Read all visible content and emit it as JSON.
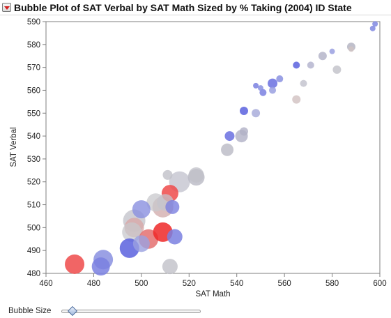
{
  "header": {
    "menu_icon": "red-disclosure-triangle-icon",
    "title": "Bubble Plot of SAT Verbal by SAT Math Sized by % Taking (2004) ID State"
  },
  "slider": {
    "label": "Bubble Size",
    "value_fraction": 0.08
  },
  "colors": {
    "red": "#ee4a4a",
    "blue": "#6a70e0",
    "gray": "#b9b9c4",
    "axis": "#7f7f7f"
  },
  "chart_data": {
    "type": "scatter",
    "xlabel": "SAT Math",
    "ylabel": "SAT Verbal",
    "xlim": [
      460,
      600
    ],
    "ylim": [
      480,
      590
    ],
    "xticks": [
      460,
      480,
      500,
      520,
      540,
      560,
      580,
      600
    ],
    "yticks": [
      480,
      490,
      500,
      510,
      520,
      530,
      540,
      550,
      560,
      570,
      580,
      590
    ],
    "grid": false,
    "points": [
      {
        "x": 598,
        "y": 589,
        "size": 4,
        "color": "#8088e0",
        "opacity": 0.85
      },
      {
        "x": 597,
        "y": 587,
        "size": 4,
        "color": "#8088e0",
        "opacity": 0.85
      },
      {
        "x": 588,
        "y": 579,
        "size": 6,
        "color": "#b0b0bf",
        "opacity": 0.8
      },
      {
        "x": 588,
        "y": 578,
        "size": 4,
        "color": "#d0c3c3",
        "opacity": 0.8
      },
      {
        "x": 582,
        "y": 569,
        "size": 6,
        "color": "#c0c0c8",
        "opacity": 0.8
      },
      {
        "x": 580,
        "y": 577,
        "size": 4,
        "color": "#9aa0e0",
        "opacity": 0.85
      },
      {
        "x": 576,
        "y": 575,
        "size": 6,
        "color": "#b0b0c6",
        "opacity": 0.8
      },
      {
        "x": 571,
        "y": 571,
        "size": 5,
        "color": "#b0b0cc",
        "opacity": 0.8
      },
      {
        "x": 568,
        "y": 563,
        "size": 5,
        "color": "#c0c0cc",
        "opacity": 0.8
      },
      {
        "x": 565,
        "y": 571,
        "size": 5,
        "color": "#5a62de",
        "opacity": 0.85
      },
      {
        "x": 565,
        "y": 556,
        "size": 6,
        "color": "#d3c4c4",
        "opacity": 0.85
      },
      {
        "x": 558,
        "y": 565,
        "size": 5,
        "color": "#8a90e0",
        "opacity": 0.85
      },
      {
        "x": 555,
        "y": 563,
        "size": 7,
        "color": "#6a70e0",
        "opacity": 0.85
      },
      {
        "x": 555,
        "y": 560,
        "size": 5,
        "color": "#9aa0e0",
        "opacity": 0.85
      },
      {
        "x": 551,
        "y": 559,
        "size": 5,
        "color": "#7a80e0",
        "opacity": 0.85
      },
      {
        "x": 550,
        "y": 561,
        "size": 4,
        "color": "#8a90e0",
        "opacity": 0.85
      },
      {
        "x": 548,
        "y": 562,
        "size": 4,
        "color": "#7a80e0",
        "opacity": 0.85
      },
      {
        "x": 548,
        "y": 550,
        "size": 6,
        "color": "#a4a8d8",
        "opacity": 0.8
      },
      {
        "x": 543,
        "y": 551,
        "size": 6,
        "color": "#5a62de",
        "opacity": 0.85
      },
      {
        "x": 543,
        "y": 542,
        "size": 6,
        "color": "#b0b0c6",
        "opacity": 0.8
      },
      {
        "x": 542,
        "y": 540,
        "size": 9,
        "color": "#b0b0c6",
        "opacity": 0.8
      },
      {
        "x": 537,
        "y": 540,
        "size": 7,
        "color": "#6a70e0",
        "opacity": 0.85
      },
      {
        "x": 536,
        "y": 534,
        "size": 9,
        "color": "#b9b9c4",
        "opacity": 0.8
      },
      {
        "x": 523,
        "y": 522,
        "size": 12,
        "color": "#b9b9c4",
        "opacity": 0.8
      },
      {
        "x": 523,
        "y": 523,
        "size": 11,
        "color": "#c0c0c8",
        "opacity": 0.75
      },
      {
        "x": 516,
        "y": 520,
        "size": 15,
        "color": "#c0c0cc",
        "opacity": 0.75
      },
      {
        "x": 511,
        "y": 523,
        "size": 7,
        "color": "#c0c0c8",
        "opacity": 0.8
      },
      {
        "x": 512,
        "y": 515,
        "size": 12,
        "color": "#ee4a4a",
        "opacity": 0.85
      },
      {
        "x": 513,
        "y": 509,
        "size": 10,
        "color": "#7a80e0",
        "opacity": 0.8
      },
      {
        "x": 510,
        "y": 511,
        "size": 12,
        "color": "#c4c4cc",
        "opacity": 0.75
      },
      {
        "x": 509,
        "y": 509,
        "size": 15,
        "color": "#d0a8a8",
        "opacity": 0.75
      },
      {
        "x": 506,
        "y": 511,
        "size": 13,
        "color": "#c8c8cc",
        "opacity": 0.75
      },
      {
        "x": 500,
        "y": 508,
        "size": 13,
        "color": "#8a90e0",
        "opacity": 0.8
      },
      {
        "x": 497,
        "y": 503,
        "size": 16,
        "color": "#c0c0c8",
        "opacity": 0.75
      },
      {
        "x": 497,
        "y": 500,
        "size": 14,
        "color": "#d8a8a8",
        "opacity": 0.8
      },
      {
        "x": 496,
        "y": 498,
        "size": 14,
        "color": "#c8c8cc",
        "opacity": 0.75
      },
      {
        "x": 503,
        "y": 495,
        "size": 14,
        "color": "#e47070",
        "opacity": 0.85
      },
      {
        "x": 500,
        "y": 493,
        "size": 12,
        "color": "#9aa0e0",
        "opacity": 0.8
      },
      {
        "x": 495,
        "y": 491,
        "size": 14,
        "color": "#5a62de",
        "opacity": 0.85
      },
      {
        "x": 509,
        "y": 498,
        "size": 14,
        "color": "#ee2828",
        "opacity": 0.85
      },
      {
        "x": 514,
        "y": 496,
        "size": 11,
        "color": "#7a80e0",
        "opacity": 0.85
      },
      {
        "x": 512,
        "y": 483,
        "size": 11,
        "color": "#c0c0c8",
        "opacity": 0.8
      },
      {
        "x": 484,
        "y": 486,
        "size": 14,
        "color": "#8a90e0",
        "opacity": 0.85
      },
      {
        "x": 483,
        "y": 483,
        "size": 13,
        "color": "#7a80e0",
        "opacity": 0.85
      },
      {
        "x": 472,
        "y": 484,
        "size": 14,
        "color": "#ee4a4a",
        "opacity": 0.85
      }
    ]
  }
}
